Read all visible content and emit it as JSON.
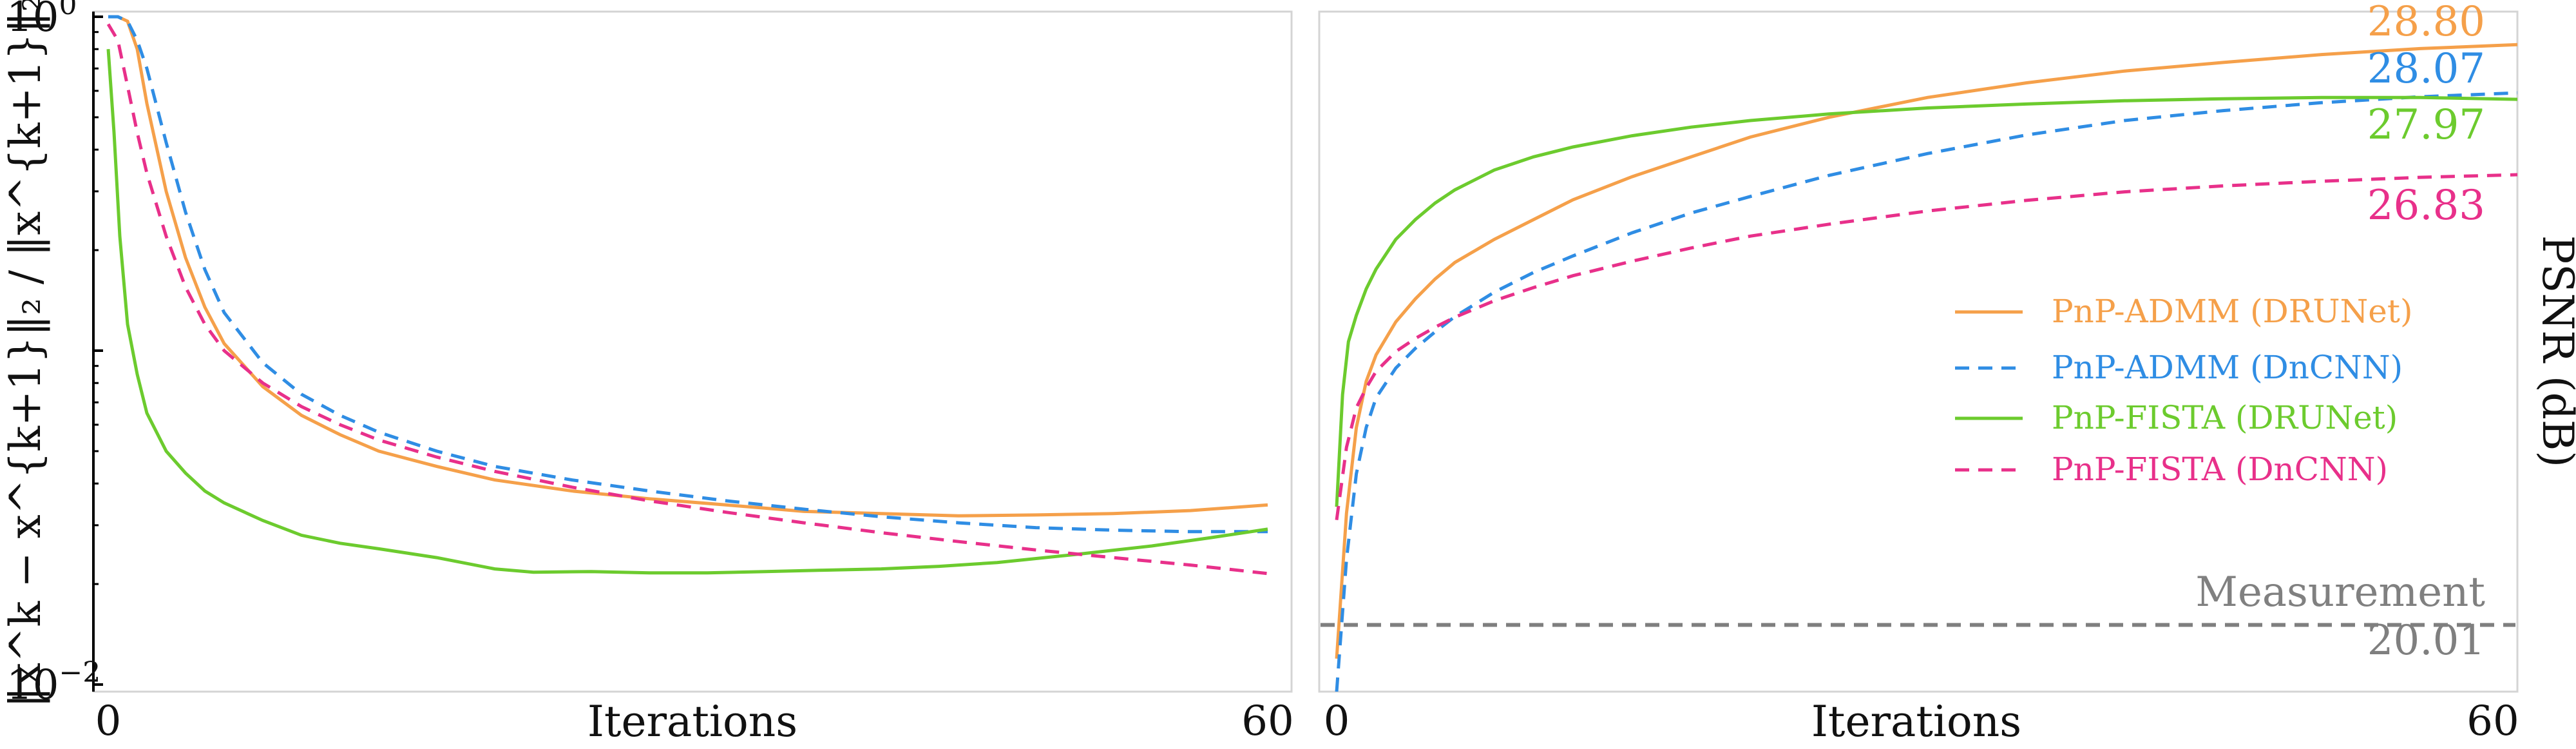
{
  "chart_data": [
    {
      "type": "line",
      "xlabel": "Iterations",
      "ylabel": "‖x^k − x^{k+1}‖₂ / ‖x^{k+1}‖₂",
      "xlim": [
        0,
        60
      ],
      "ylim": [
        0.01,
        1
      ],
      "yscale": "log",
      "xticks": [
        "0",
        "60"
      ],
      "yticks": [
        "10⁰",
        "10⁻²"
      ],
      "grid": false,
      "legend": "none",
      "series": [
        {
          "name": "PnP-ADMM (DRUNet)",
          "color": "#f5a04a",
          "dash": "solid",
          "x": [
            0,
            0.5,
            1,
            1.5,
            2,
            3,
            4,
            5,
            6,
            8,
            10,
            12,
            14,
            17,
            20,
            24,
            28,
            32,
            36,
            40,
            44,
            48,
            52,
            56,
            60
          ],
          "y": [
            1,
            1,
            0.97,
            0.8,
            0.55,
            0.3,
            0.19,
            0.135,
            0.105,
            0.078,
            0.064,
            0.056,
            0.05,
            0.045,
            0.041,
            0.038,
            0.036,
            0.0345,
            0.033,
            0.0325,
            0.032,
            0.0322,
            0.0325,
            0.0332,
            0.0345
          ]
        },
        {
          "name": "PnP-ADMM (DnCNN)",
          "color": "#2f8de4",
          "dash": "dashed",
          "x": [
            0,
            0.5,
            1,
            1.5,
            2,
            3,
            4,
            5,
            6,
            8,
            10,
            12,
            14,
            17,
            20,
            24,
            28,
            32,
            36,
            40,
            44,
            48,
            52,
            56,
            60
          ],
          "y": [
            1,
            1,
            0.97,
            0.85,
            0.7,
            0.42,
            0.26,
            0.175,
            0.13,
            0.092,
            0.074,
            0.064,
            0.057,
            0.05,
            0.045,
            0.041,
            0.038,
            0.0355,
            0.0335,
            0.0318,
            0.0305,
            0.0295,
            0.029,
            0.0287,
            0.0287
          ]
        },
        {
          "name": "PnP-FISTA (DRUNet)",
          "color": "#6ccb2e",
          "dash": "solid",
          "x": [
            0,
            0.3,
            0.6,
            1,
            1.5,
            2,
            3,
            4,
            5,
            6,
            8,
            10,
            12,
            14,
            17,
            20,
            22,
            25,
            28,
            31,
            34,
            37,
            40,
            43,
            46,
            50,
            54,
            57,
            60
          ],
          "y": [
            0.8,
            0.45,
            0.22,
            0.12,
            0.085,
            0.065,
            0.05,
            0.043,
            0.038,
            0.035,
            0.031,
            0.028,
            0.0265,
            0.0255,
            0.024,
            0.0222,
            0.0217,
            0.0218,
            0.0216,
            0.0216,
            0.0218,
            0.022,
            0.0222,
            0.0226,
            0.0232,
            0.0245,
            0.026,
            0.0275,
            0.0292
          ]
        },
        {
          "name": "PnP-FISTA (DnCNN)",
          "color": "#e8308a",
          "dash": "dashed",
          "x": [
            0,
            0.5,
            1,
            1.5,
            2,
            3,
            4,
            5,
            6,
            8,
            10,
            12,
            14,
            17,
            20,
            24,
            28,
            32,
            36,
            40,
            44,
            48,
            52,
            56,
            60
          ],
          "y": [
            0.95,
            0.85,
            0.62,
            0.45,
            0.34,
            0.22,
            0.155,
            0.12,
            0.1,
            0.08,
            0.068,
            0.06,
            0.054,
            0.048,
            0.0435,
            0.039,
            0.0355,
            0.0328,
            0.0305,
            0.0285,
            0.0268,
            0.0253,
            0.024,
            0.0228,
            0.0215
          ]
        }
      ]
    },
    {
      "type": "line",
      "xlabel": "Iterations",
      "ylabel": "PSNR (dB)",
      "xlim": [
        0,
        60
      ],
      "ylim": [
        19,
        29.3
      ],
      "xticks": [
        "0",
        "60"
      ],
      "grid": false,
      "legend": "center-right",
      "series": [
        {
          "name": "PnP-ADMM (DRUNet)",
          "color": "#f5a04a",
          "dash": "solid",
          "final_label": "28.80",
          "x": [
            0,
            0.5,
            1,
            1.5,
            2,
            3,
            4,
            5,
            6,
            8,
            10,
            12,
            15,
            18,
            21,
            25,
            30,
            35,
            40,
            45,
            50,
            55,
            60
          ],
          "y": [
            19.5,
            21.7,
            23.0,
            23.7,
            24.1,
            24.6,
            24.95,
            25.25,
            25.5,
            25.85,
            26.15,
            26.45,
            26.8,
            27.1,
            27.4,
            27.7,
            28.0,
            28.22,
            28.4,
            28.53,
            28.65,
            28.74,
            28.8
          ]
        },
        {
          "name": "PnP-ADMM (DnCNN)",
          "color": "#2f8de4",
          "dash": "dashed",
          "final_label": "28.07",
          "x": [
            0,
            0.5,
            1,
            1.5,
            2,
            3,
            4,
            5,
            6,
            8,
            10,
            12,
            15,
            18,
            21,
            25,
            30,
            35,
            40,
            45,
            50,
            55,
            60
          ],
          "y": [
            19.0,
            21.0,
            22.3,
            23.0,
            23.45,
            23.9,
            24.2,
            24.45,
            24.68,
            25.05,
            25.35,
            25.6,
            25.95,
            26.25,
            26.5,
            26.82,
            27.15,
            27.43,
            27.65,
            27.8,
            27.92,
            28.01,
            28.07
          ]
        },
        {
          "name": "PnP-FISTA (DRUNet)",
          "color": "#6ccb2e",
          "dash": "solid",
          "final_label": "27.97",
          "x": [
            0,
            0.3,
            0.6,
            1,
            1.5,
            2,
            3,
            4,
            5,
            6,
            8,
            10,
            12,
            15,
            18,
            21,
            25,
            30,
            35,
            40,
            45,
            50,
            55,
            60
          ],
          "y": [
            21.8,
            23.5,
            24.3,
            24.7,
            25.1,
            25.4,
            25.85,
            26.15,
            26.4,
            26.6,
            26.9,
            27.1,
            27.25,
            27.42,
            27.55,
            27.65,
            27.75,
            27.84,
            27.9,
            27.95,
            27.98,
            28.0,
            28.0,
            27.97
          ]
        },
        {
          "name": "PnP-FISTA (DnCNN)",
          "color": "#e8308a",
          "dash": "dashed",
          "final_label": "26.83",
          "x": [
            0,
            0.5,
            1,
            1.5,
            2,
            3,
            4,
            5,
            6,
            8,
            10,
            12,
            15,
            18,
            21,
            25,
            30,
            35,
            40,
            45,
            50,
            55,
            60
          ],
          "y": [
            21.6,
            22.7,
            23.3,
            23.6,
            23.85,
            24.15,
            24.35,
            24.52,
            24.67,
            24.92,
            25.12,
            25.3,
            25.52,
            25.72,
            25.9,
            26.08,
            26.28,
            26.44,
            26.57,
            26.66,
            26.73,
            26.79,
            26.83
          ]
        },
        {
          "name": "Measurement",
          "color": "#7f7f7f",
          "dash": "dashed",
          "final_label": "20.01",
          "x": [
            0,
            60
          ],
          "y": [
            20.01,
            20.01
          ]
        }
      ]
    }
  ]
}
